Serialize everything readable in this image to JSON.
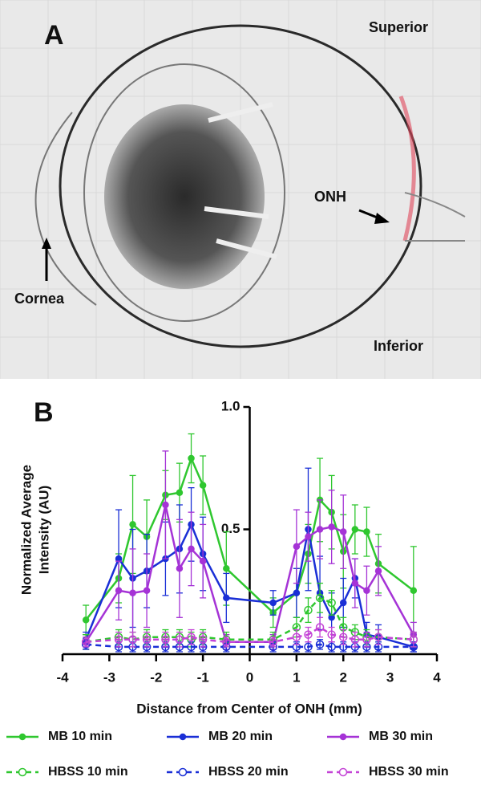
{
  "panel_a": {
    "label": "A",
    "annotations": [
      "Superior",
      "ONH",
      "Cornea",
      "Inferior"
    ]
  },
  "chart_data": {
    "type": "line",
    "panel_label": "B",
    "xlabel": "Distance from Center of ONH (mm)",
    "ylabel": [
      "Normalized Average",
      "Intensity (AU)"
    ],
    "xlim": [
      -4,
      4
    ],
    "xticks": [
      -4,
      -3,
      -2,
      -1,
      0,
      1,
      2,
      3,
      4
    ],
    "ylim": [
      0,
      1
    ],
    "yticks": [
      0.5,
      {
        "value": 1,
        "label": "1.0"
      }
    ],
    "x": [
      -3.5,
      -2.8,
      -2.5,
      -2.2,
      -1.8,
      -1.5,
      -1.25,
      -1.0,
      -0.5,
      0.5,
      1.0,
      1.25,
      1.5,
      1.75,
      2.0,
      2.25,
      2.5,
      2.75,
      3.5
    ],
    "series": [
      {
        "name": "MB 10 min",
        "color": "#2fc72f",
        "style": "solid",
        "marker": "filled",
        "values": [
          0.13,
          0.3,
          0.52,
          0.47,
          0.64,
          0.65,
          0.79,
          0.68,
          0.34,
          0.16,
          0.24,
          0.4,
          0.62,
          0.57,
          0.41,
          0.5,
          0.49,
          0.36,
          0.25
        ],
        "errors": [
          0.06,
          0.1,
          0.2,
          0.15,
          0.1,
          0.12,
          0.1,
          0.12,
          0.15,
          0.06,
          0.1,
          0.12,
          0.17,
          0.15,
          0.15,
          0.1,
          0.1,
          0.12,
          0.18
        ]
      },
      {
        "name": "MB 20 min",
        "color": "#1a2fd6",
        "style": "solid",
        "marker": "filled",
        "values": [
          0.05,
          0.38,
          0.3,
          0.33,
          0.38,
          0.42,
          0.52,
          0.4,
          0.22,
          0.2,
          0.24,
          0.5,
          0.24,
          0.14,
          0.2,
          0.3,
          0.07,
          0.06,
          0.02
        ],
        "errors": [
          0.03,
          0.2,
          0.2,
          0.15,
          0.15,
          0.18,
          0.15,
          0.15,
          0.1,
          0.05,
          0.1,
          0.25,
          0.15,
          0.1,
          0.1,
          0.08,
          0.05,
          0.05,
          0.02
        ]
      },
      {
        "name": "MB 30 min",
        "color": "#a533d6",
        "style": "solid",
        "marker": "filled",
        "values": [
          0.04,
          0.25,
          0.24,
          0.25,
          0.6,
          0.34,
          0.42,
          0.37,
          0.04,
          0.04,
          0.43,
          0.47,
          0.5,
          0.51,
          0.49,
          0.28,
          0.25,
          0.33,
          0.07
        ],
        "errors": [
          0.03,
          0.12,
          0.18,
          0.15,
          0.22,
          0.2,
          0.15,
          0.15,
          0.03,
          0.03,
          0.15,
          0.1,
          0.12,
          0.15,
          0.15,
          0.1,
          0.1,
          0.1,
          0.05
        ]
      },
      {
        "name": "HBSS 10 min",
        "color": "#2fc72f",
        "style": "dashed",
        "marker": "open",
        "values": [
          0.04,
          0.06,
          0.05,
          0.06,
          0.06,
          0.06,
          0.05,
          0.06,
          0.05,
          0.05,
          0.1,
          0.17,
          0.22,
          0.2,
          0.1,
          0.08,
          0.06,
          0.06,
          0.05
        ],
        "errors": [
          0.03,
          0.03,
          0.03,
          0.03,
          0.03,
          0.03,
          0.03,
          0.03,
          0.03,
          0.03,
          0.04,
          0.05,
          0.06,
          0.05,
          0.04,
          0.03,
          0.03,
          0.03,
          0.03
        ]
      },
      {
        "name": "HBSS 20 min",
        "color": "#1a2fd6",
        "style": "dashed",
        "marker": "open",
        "values": [
          0.03,
          0.02,
          0.02,
          0.02,
          0.02,
          0.02,
          0.02,
          0.02,
          0.02,
          0.02,
          0.02,
          0.02,
          0.03,
          0.02,
          0.02,
          0.02,
          0.02,
          0.02,
          0.02
        ],
        "errors": [
          0.02,
          0.02,
          0.02,
          0.02,
          0.02,
          0.02,
          0.02,
          0.02,
          0.02,
          0.02,
          0.02,
          0.02,
          0.02,
          0.02,
          0.02,
          0.02,
          0.02,
          0.02,
          0.02
        ]
      },
      {
        "name": "HBSS 30 min",
        "color": "#c444d6",
        "style": "dashed",
        "marker": "open",
        "values": [
          0.04,
          0.05,
          0.05,
          0.05,
          0.05,
          0.05,
          0.06,
          0.05,
          0.04,
          0.04,
          0.06,
          0.07,
          0.1,
          0.07,
          0.06,
          0.05,
          0.05,
          0.06,
          0.05
        ],
        "errors": [
          0.02,
          0.03,
          0.03,
          0.03,
          0.03,
          0.03,
          0.03,
          0.03,
          0.02,
          0.02,
          0.03,
          0.03,
          0.04,
          0.03,
          0.03,
          0.03,
          0.03,
          0.03,
          0.03
        ]
      }
    ]
  }
}
